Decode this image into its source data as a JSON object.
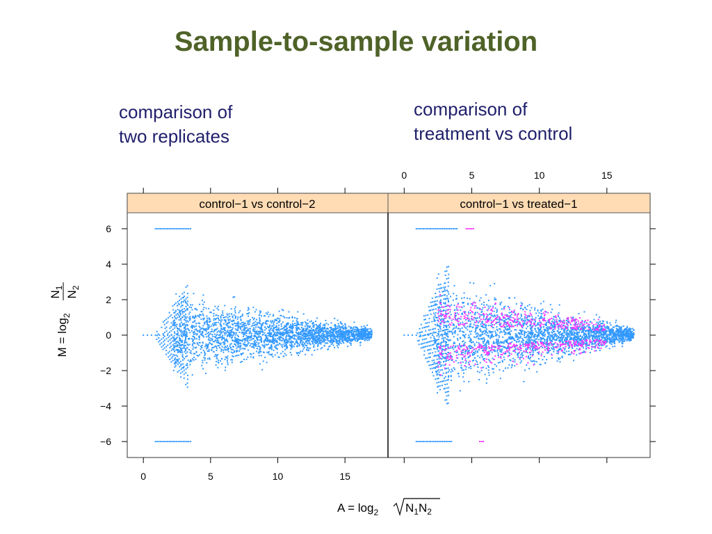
{
  "slide": {
    "title": "Sample-to-sample variation",
    "caption_left": [
      "comparison of",
      "two replicates"
    ],
    "caption_right": [
      "comparison of",
      "treatment vs control"
    ]
  },
  "colors": {
    "title": "#4f6228",
    "caption": "#1f1f6b",
    "strip_bg": "#ffdcb4",
    "points_primary": "#3399ff",
    "points_highlight": "#ff33ff"
  },
  "chart_data": {
    "type": "scatter",
    "xlabel": "A = log₂ √N₁N₂",
    "ylabel": "M = log₂ N₁/N₂",
    "xlim": [
      -1.2,
      18.2
    ],
    "ylim": [
      -6.9,
      6.9
    ],
    "x_ticks": [
      0,
      5,
      10,
      15
    ],
    "y_ticks": [
      -6,
      -4,
      -2,
      0,
      2,
      4,
      6
    ],
    "x_tick_labels": [
      "0",
      "5",
      "10",
      "15"
    ],
    "y_tick_labels": [
      "−6",
      "−4",
      "−2",
      "0",
      "2",
      "4",
      "6"
    ],
    "panels": [
      {
        "strip": "control−1 vs control−2",
        "series": [
          {
            "color": "#3399ff",
            "description_points": "MA cloud centered at M≈0; spread ≈±2.5 at A≈2.5 narrowing to ≈±0.4 at A≈16; saturated rows at M=6 and M=−6 for A≈1–3.5",
            "cloud": {
              "a_min": 0.8,
              "a_max": 17.0,
              "m_spread_at_low_a": 2.6,
              "m_spread_at_high_a": 0.4
            },
            "saturated_rows": [
              {
                "m": 6,
                "a_range": [
                  0.9,
                  3.6
                ]
              },
              {
                "m": -6,
                "a_range": [
                  0.9,
                  3.6
                ]
              }
            ]
          }
        ]
      },
      {
        "strip": "control−1 vs treated−1",
        "series": [
          {
            "color": "#3399ff",
            "cloud": {
              "a_min": 0.8,
              "a_max": 17.0,
              "m_spread_at_low_a": 3.6,
              "m_spread_at_high_a": 0.4
            },
            "saturated_rows": [
              {
                "m": 6,
                "a_range": [
                  0.9,
                  4.0
                ]
              },
              {
                "m": -6,
                "a_range": [
                  0.9,
                  3.6
                ]
              }
            ]
          },
          {
            "color": "#ff33ff",
            "highlight": {
              "a_min": 2.5,
              "a_max": 15.0,
              "m_range": [
                -4.5,
                3.8
              ],
              "band_center_offset": 0.6
            },
            "saturated_rows": [
              {
                "m": 6,
                "a_range": [
                  4.6,
                  5.2
                ]
              },
              {
                "m": -6,
                "a_range": [
                  5.6,
                  5.9
                ]
              }
            ]
          }
        ]
      }
    ]
  }
}
